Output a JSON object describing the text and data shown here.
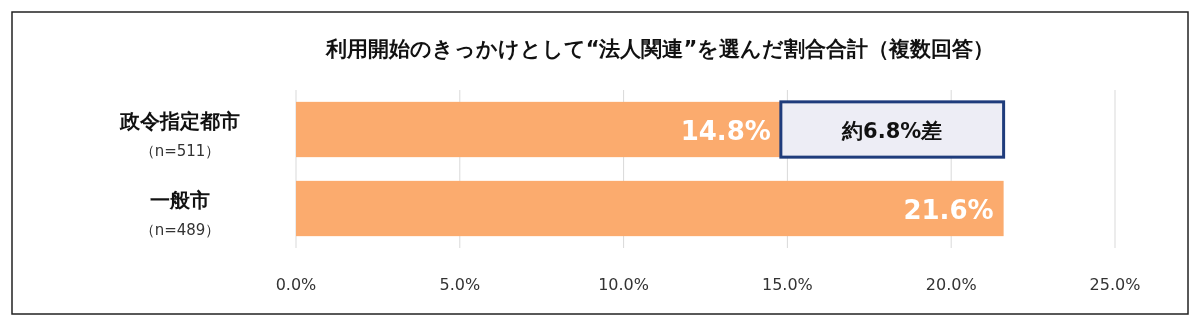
{
  "chart_data": {
    "type": "bar",
    "orientation": "horizontal",
    "title": "利用開始のきっかけとして“法人関連”を選んだ割合合計（複数回答）",
    "categories": [
      "政令指定都市（n=511）",
      "一般市（n=489）"
    ],
    "values": [
      14.8,
      21.6
    ],
    "color": "#fbab6e",
    "value_labels": [
      "14.8%",
      "21.6%"
    ],
    "xlim": [
      0,
      25
    ],
    "xticks": [
      {
        "value": 0,
        "label": "0.0%"
      },
      {
        "value": 5,
        "label": "5.0%"
      },
      {
        "value": 10,
        "label": "10.0%"
      },
      {
        "value": 15,
        "label": "15.0%"
      },
      {
        "value": 20,
        "label": "20.0%"
      },
      {
        "value": 25,
        "label": "25.0%"
      }
    ],
    "grid": "x",
    "annotations": [
      "約6.8%差"
    ]
  }
}
